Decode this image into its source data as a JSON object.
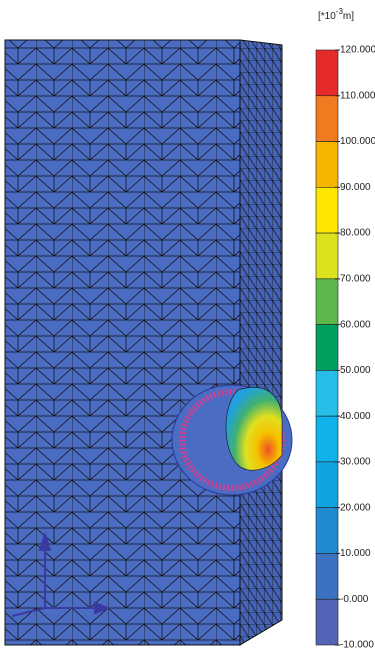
{
  "legend": {
    "unit_prefix": "[*10",
    "unit_exponent": "-3",
    "unit_suffix": "m]",
    "labels": [
      "120.000",
      "110.000",
      "100.000",
      "90.000",
      "80.000",
      "70.000",
      "60.000",
      "50.000",
      "40.000",
      "30.000",
      "20.000",
      "10.000",
      "-0.000",
      "-10.000"
    ],
    "band_colors": [
      "#e52a2a",
      "#f07a20",
      "#f5b400",
      "#ffe600",
      "#dce21e",
      "#5cb84a",
      "#00a05e",
      "#27bde6",
      "#0fb2ea",
      "#12a4e0",
      "#1e8bd2",
      "#3d72c2",
      "#5563b7"
    ]
  }
}
